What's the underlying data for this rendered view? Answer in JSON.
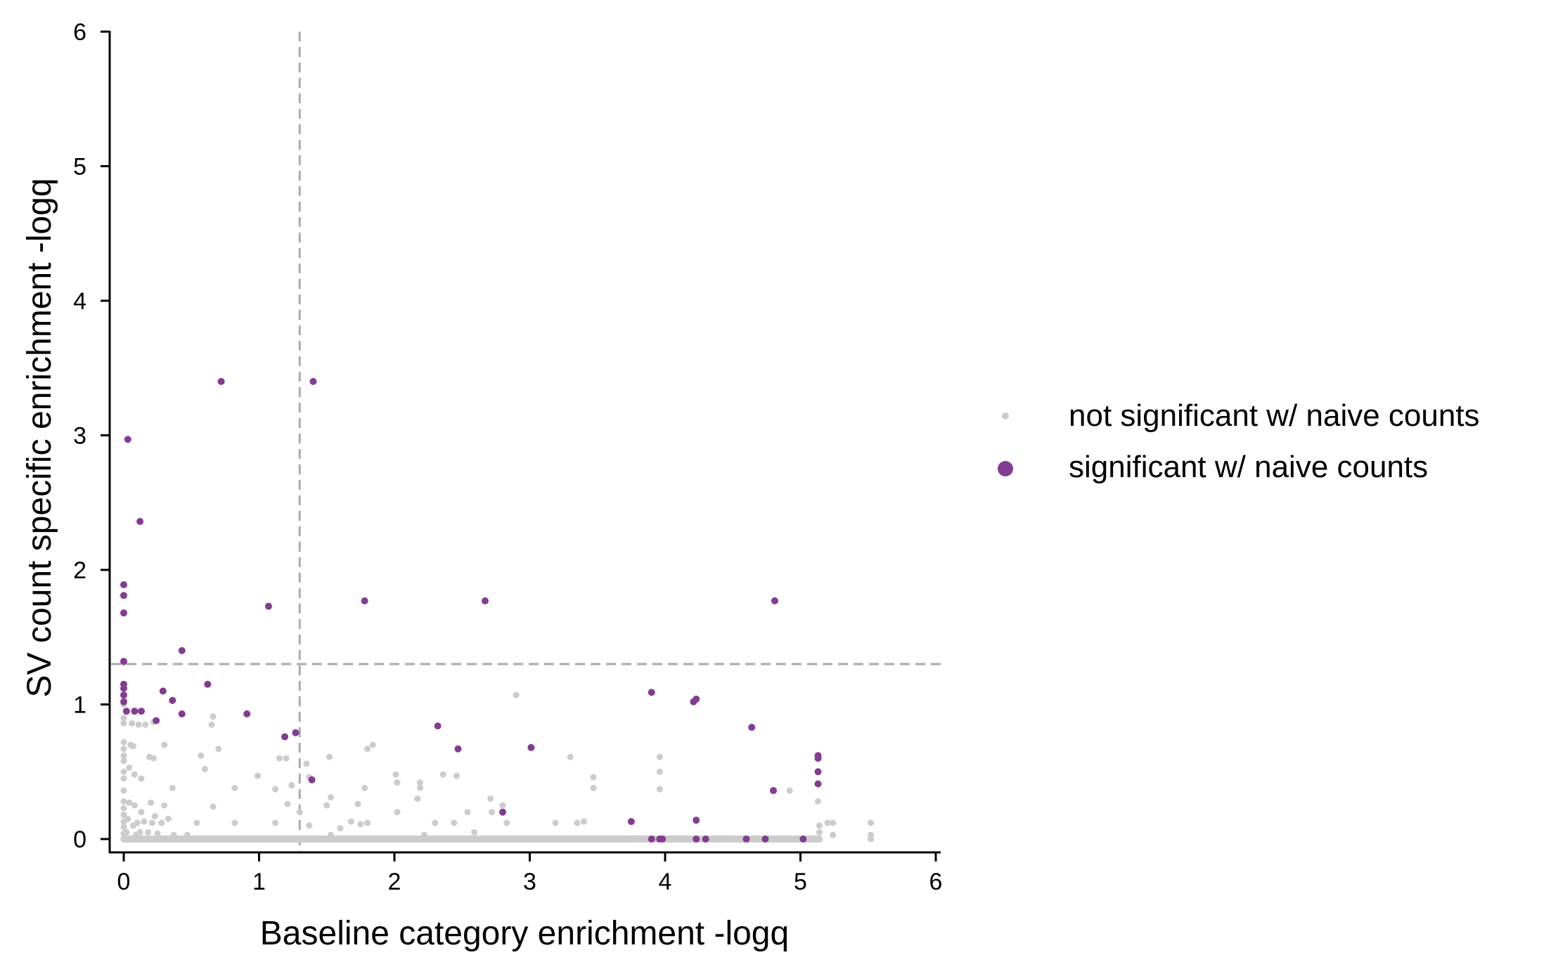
{
  "chart_data": {
    "type": "scatter",
    "xlabel": "Baseline category enrichment -logq",
    "ylabel": "SV count specific enrichment -logq",
    "xlim": [
      -0.1,
      6
    ],
    "ylim": [
      -0.1,
      6
    ],
    "xticks": [
      "0",
      "1",
      "2",
      "3",
      "4",
      "5",
      "6"
    ],
    "yticks": [
      "0",
      "1",
      "2",
      "3",
      "4",
      "5",
      "6"
    ],
    "threshold_lines": {
      "x": 1.3,
      "y": 1.3,
      "style": "dashed",
      "color": "#aaaaaa"
    },
    "legend_placement": "right",
    "series": [
      {
        "name": "not significant w/ naive counts",
        "color": "#cccccc",
        "points": [
          [
            0.0,
            0.0
          ],
          [
            0.02,
            0.0
          ],
          [
            0.05,
            0.0
          ],
          [
            0.1,
            0.0
          ],
          [
            0.15,
            0.0
          ],
          [
            0.2,
            0.0
          ],
          [
            0.3,
            0.0
          ],
          [
            0.4,
            0.0
          ],
          [
            0.5,
            0.0
          ],
          [
            0.6,
            0.0
          ],
          [
            0.7,
            0.0
          ],
          [
            0.8,
            0.0
          ],
          [
            0.9,
            0.0
          ],
          [
            1.0,
            0.0
          ],
          [
            1.1,
            0.0
          ],
          [
            1.2,
            0.0
          ],
          [
            1.3,
            0.0
          ],
          [
            1.4,
            0.0
          ],
          [
            1.5,
            0.0
          ],
          [
            1.6,
            0.0
          ],
          [
            1.7,
            0.0
          ],
          [
            1.8,
            0.0
          ],
          [
            1.9,
            0.0
          ],
          [
            2.0,
            0.0
          ],
          [
            2.1,
            0.0
          ],
          [
            2.2,
            0.0
          ],
          [
            2.3,
            0.0
          ],
          [
            2.4,
            0.0
          ],
          [
            2.5,
            0.0
          ],
          [
            2.6,
            0.0
          ],
          [
            2.7,
            0.0
          ],
          [
            2.8,
            0.0
          ],
          [
            2.9,
            0.0
          ],
          [
            3.0,
            0.0
          ],
          [
            3.1,
            0.0
          ],
          [
            3.2,
            0.0
          ],
          [
            3.3,
            0.0
          ],
          [
            3.4,
            0.0
          ],
          [
            3.5,
            0.0
          ],
          [
            3.6,
            0.0
          ],
          [
            3.7,
            0.0
          ],
          [
            3.8,
            0.0
          ],
          [
            3.9,
            0.0
          ],
          [
            4.0,
            0.0
          ],
          [
            4.1,
            0.0
          ],
          [
            4.2,
            0.0
          ],
          [
            4.3,
            0.0
          ],
          [
            4.4,
            0.0
          ],
          [
            4.5,
            0.0
          ],
          [
            4.6,
            0.0
          ],
          [
            4.7,
            0.0
          ],
          [
            4.8,
            0.0
          ],
          [
            4.9,
            0.0
          ],
          [
            5.0,
            0.0
          ],
          [
            5.12,
            0.0
          ],
          [
            5.52,
            0.0
          ],
          [
            0.0,
            0.04
          ],
          [
            0.0,
            0.09
          ],
          [
            0.0,
            0.13
          ],
          [
            0.0,
            0.18
          ],
          [
            0.0,
            0.23
          ],
          [
            0.0,
            0.28
          ],
          [
            0.0,
            0.36
          ],
          [
            0.0,
            0.45
          ],
          [
            0.0,
            0.5
          ],
          [
            0.0,
            0.58
          ],
          [
            0.0,
            0.62
          ],
          [
            0.0,
            0.67
          ],
          [
            0.0,
            0.72
          ],
          [
            0.0,
            0.86
          ],
          [
            0.0,
            0.9
          ],
          [
            0.0,
            1.0
          ],
          [
            0.0,
            1.31
          ],
          [
            0.02,
            0.05
          ],
          [
            0.03,
            0.15
          ],
          [
            0.04,
            0.27
          ],
          [
            0.04,
            0.53
          ],
          [
            0.05,
            0.7
          ],
          [
            0.06,
            0.86
          ],
          [
            0.07,
            0.1
          ],
          [
            0.07,
            0.69
          ],
          [
            0.08,
            0.25
          ],
          [
            0.08,
            0.48
          ],
          [
            0.09,
            0.03
          ],
          [
            0.1,
            0.12
          ],
          [
            0.11,
            0.85
          ],
          [
            0.12,
            0.05
          ],
          [
            0.13,
            0.2
          ],
          [
            0.13,
            0.45
          ],
          [
            0.15,
            0.13
          ],
          [
            0.16,
            0.85
          ],
          [
            0.18,
            0.05
          ],
          [
            0.19,
            0.61
          ],
          [
            0.2,
            0.27
          ],
          [
            0.21,
            0.12
          ],
          [
            0.22,
            0.6
          ],
          [
            0.22,
            0.87
          ],
          [
            0.23,
            0.17
          ],
          [
            0.25,
            0.04
          ],
          [
            0.28,
            0.12
          ],
          [
            0.3,
            0.25
          ],
          [
            0.3,
            0.7
          ],
          [
            0.33,
            0.15
          ],
          [
            0.36,
            0.38
          ],
          [
            0.37,
            0.03
          ],
          [
            0.47,
            0.03
          ],
          [
            0.54,
            0.12
          ],
          [
            0.57,
            0.62
          ],
          [
            0.6,
            0.52
          ],
          [
            0.65,
            0.85
          ],
          [
            0.66,
            0.91
          ],
          [
            0.66,
            0.24
          ],
          [
            0.7,
            0.67
          ],
          [
            0.82,
            0.38
          ],
          [
            0.82,
            0.12
          ],
          [
            0.99,
            0.47
          ],
          [
            1.12,
            0.12
          ],
          [
            1.12,
            0.37
          ],
          [
            1.15,
            0.6
          ],
          [
            1.2,
            0.6
          ],
          [
            1.21,
            0.26
          ],
          [
            1.24,
            0.4
          ],
          [
            1.3,
            0.2
          ],
          [
            1.35,
            0.56
          ],
          [
            1.37,
            0.46
          ],
          [
            1.37,
            0.1
          ],
          [
            1.5,
            0.25
          ],
          [
            1.52,
            0.61
          ],
          [
            1.53,
            0.31
          ],
          [
            1.53,
            0.03
          ],
          [
            1.6,
            0.08
          ],
          [
            1.68,
            0.13
          ],
          [
            1.73,
            0.26
          ],
          [
            1.75,
            0.11
          ],
          [
            1.78,
            0.38
          ],
          [
            1.8,
            0.67
          ],
          [
            1.8,
            0.12
          ],
          [
            1.84,
            0.7
          ],
          [
            2.01,
            0.48
          ],
          [
            2.02,
            0.2
          ],
          [
            2.02,
            0.42
          ],
          [
            2.17,
            0.3
          ],
          [
            2.19,
            0.38
          ],
          [
            2.19,
            0.42
          ],
          [
            2.22,
            0.03
          ],
          [
            2.3,
            0.12
          ],
          [
            2.36,
            0.48
          ],
          [
            2.44,
            0.12
          ],
          [
            2.46,
            0.47
          ],
          [
            2.54,
            0.2
          ],
          [
            2.59,
            0.05
          ],
          [
            2.71,
            0.3
          ],
          [
            2.72,
            0.2
          ],
          [
            2.8,
            0.25
          ],
          [
            2.83,
            0.12
          ],
          [
            2.9,
            1.07
          ],
          [
            3.19,
            0.12
          ],
          [
            3.3,
            0.61
          ],
          [
            3.35,
            0.12
          ],
          [
            3.4,
            0.13
          ],
          [
            3.47,
            0.46
          ],
          [
            3.47,
            0.38
          ],
          [
            3.96,
            0.61
          ],
          [
            3.96,
            0.5
          ],
          [
            3.96,
            0.37
          ],
          [
            4.92,
            0.36
          ],
          [
            5.13,
            0.28
          ],
          [
            5.14,
            0.1
          ],
          [
            5.14,
            0.05
          ],
          [
            5.2,
            0.12
          ],
          [
            5.24,
            0.12
          ],
          [
            5.24,
            0.03
          ],
          [
            5.52,
            0.03
          ],
          [
            5.52,
            0.12
          ]
        ]
      },
      {
        "name": "significant w/ naive counts",
        "color": "#833c91",
        "points": [
          [
            0.72,
            3.4
          ],
          [
            1.4,
            3.4
          ],
          [
            0.03,
            2.97
          ],
          [
            0.12,
            2.36
          ],
          [
            0.0,
            1.89
          ],
          [
            0.0,
            1.81
          ],
          [
            0.0,
            1.68
          ],
          [
            1.07,
            1.73
          ],
          [
            1.78,
            1.77
          ],
          [
            2.67,
            1.77
          ],
          [
            4.81,
            1.77
          ],
          [
            0.43,
            1.4
          ],
          [
            0.0,
            1.32
          ],
          [
            0.0,
            1.15
          ],
          [
            0.0,
            1.12
          ],
          [
            0.0,
            1.07
          ],
          [
            0.0,
            1.02
          ],
          [
            0.62,
            1.15
          ],
          [
            0.29,
            1.1
          ],
          [
            0.36,
            1.03
          ],
          [
            0.02,
            0.95
          ],
          [
            0.08,
            0.95
          ],
          [
            0.13,
            0.95
          ],
          [
            0.43,
            0.93
          ],
          [
            0.91,
            0.93
          ],
          [
            0.24,
            0.88
          ],
          [
            3.9,
            1.09
          ],
          [
            4.21,
            1.02
          ],
          [
            4.23,
            1.04
          ],
          [
            2.32,
            0.84
          ],
          [
            4.64,
            0.83
          ],
          [
            1.19,
            0.76
          ],
          [
            1.27,
            0.79
          ],
          [
            2.47,
            0.67
          ],
          [
            3.01,
            0.68
          ],
          [
            5.13,
            0.62
          ],
          [
            5.13,
            0.6
          ],
          [
            5.13,
            0.5
          ],
          [
            5.13,
            0.41
          ],
          [
            1.39,
            0.44
          ],
          [
            4.8,
            0.36
          ],
          [
            2.8,
            0.2
          ],
          [
            3.75,
            0.13
          ],
          [
            4.23,
            0.14
          ],
          [
            3.9,
            0.0
          ],
          [
            3.96,
            0.0
          ],
          [
            3.98,
            0.0
          ],
          [
            4.23,
            0.0
          ],
          [
            4.3,
            0.0
          ],
          [
            4.6,
            0.0
          ],
          [
            4.74,
            0.0
          ],
          [
            5.02,
            0.0
          ]
        ]
      }
    ]
  }
}
